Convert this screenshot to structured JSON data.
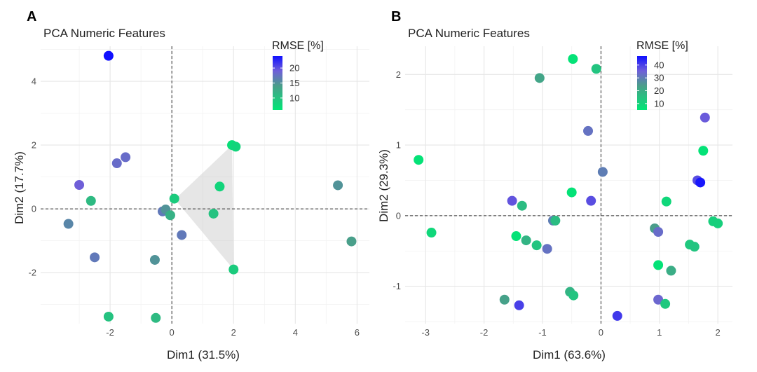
{
  "chart_data": [
    {
      "type": "scatter",
      "panel": "A",
      "title": "PCA Numeric Features",
      "xlabel": "Dim1 (31.5%)",
      "ylabel": "Dim2 (17.7%)",
      "xlim": [
        -4.25,
        6.4
      ],
      "ylim": [
        -3.6,
        5.1
      ],
      "xticks": [
        -2,
        0,
        2,
        4,
        6
      ],
      "yticks": [
        -2,
        0,
        2,
        4
      ],
      "xminor": [
        -3,
        -1,
        1,
        3,
        5
      ],
      "yminor": [
        -3,
        -1,
        1,
        3,
        5
      ],
      "grid": true,
      "legend": {
        "title": "RMSE [%]",
        "position": "top-right",
        "min": 6,
        "max": 24,
        "ticks": [
          10,
          15,
          20
        ]
      },
      "hull": [
        [
          0.1,
          0.3
        ],
        [
          1.95,
          2.0
        ],
        [
          2.0,
          -1.9
        ]
      ],
      "points": [
        {
          "x": -2.05,
          "y": 4.8,
          "rmse": 24
        },
        {
          "x": -1.5,
          "y": 1.62,
          "rmse": 18
        },
        {
          "x": -1.78,
          "y": 1.43,
          "rmse": 18
        },
        {
          "x": -3.0,
          "y": 0.75,
          "rmse": 19
        },
        {
          "x": -2.62,
          "y": 0.25,
          "rmse": 11
        },
        {
          "x": -3.35,
          "y": -0.47,
          "rmse": 16
        },
        {
          "x": -2.5,
          "y": -1.52,
          "rmse": 17
        },
        {
          "x": -0.3,
          "y": -0.08,
          "rmse": 17
        },
        {
          "x": -0.2,
          "y": -0.02,
          "rmse": 15
        },
        {
          "x": 0.08,
          "y": 0.32,
          "rmse": 9
        },
        {
          "x": -0.05,
          "y": -0.2,
          "rmse": 12
        },
        {
          "x": 0.32,
          "y": -0.82,
          "rmse": 17
        },
        {
          "x": -0.55,
          "y": -1.6,
          "rmse": 15
        },
        {
          "x": -2.05,
          "y": -3.38,
          "rmse": 10
        },
        {
          "x": -0.52,
          "y": -3.42,
          "rmse": 11
        },
        {
          "x": 1.95,
          "y": 2.0,
          "rmse": 7
        },
        {
          "x": 2.07,
          "y": 1.95,
          "rmse": 8
        },
        {
          "x": 1.55,
          "y": 0.7,
          "rmse": 8
        },
        {
          "x": 1.35,
          "y": -0.15,
          "rmse": 10
        },
        {
          "x": 2.0,
          "y": -1.9,
          "rmse": 9
        },
        {
          "x": 5.38,
          "y": 0.74,
          "rmse": 15
        },
        {
          "x": 5.82,
          "y": -1.02,
          "rmse": 14
        }
      ]
    },
    {
      "type": "scatter",
      "panel": "B",
      "title": "PCA Numeric Features",
      "xlabel": "Dim1 (63.6%)",
      "ylabel": "Dim2 (29.3%)",
      "xlim": [
        -3.35,
        2.25
      ],
      "ylim": [
        -1.53,
        2.4
      ],
      "xticks": [
        -3,
        -2,
        -1,
        0,
        1,
        2
      ],
      "yticks": [
        -1,
        0,
        1,
        2
      ],
      "xminor": [
        -2.5,
        -1.5,
        -0.5,
        0.5,
        1.5
      ],
      "yminor": [
        -1.5,
        -0.5,
        0.5,
        1.5
      ],
      "grid": true,
      "legend": {
        "title": "RMSE [%]",
        "position": "top-right",
        "min": 5,
        "max": 47,
        "ticks": [
          10,
          20,
          30,
          40
        ]
      },
      "points": [
        {
          "x": -0.48,
          "y": 2.22,
          "rmse": 6
        },
        {
          "x": -0.08,
          "y": 2.08,
          "rmse": 14
        },
        {
          "x": -1.05,
          "y": 1.95,
          "rmse": 22
        },
        {
          "x": -0.22,
          "y": 1.2,
          "rmse": 32
        },
        {
          "x": 1.78,
          "y": 1.39,
          "rmse": 36
        },
        {
          "x": 1.75,
          "y": 0.92,
          "rmse": 6
        },
        {
          "x": -3.12,
          "y": 0.79,
          "rmse": 6
        },
        {
          "x": 0.03,
          "y": 0.62,
          "rmse": 30
        },
        {
          "x": 1.65,
          "y": 0.5,
          "rmse": 38
        },
        {
          "x": 1.7,
          "y": 0.47,
          "rmse": 46
        },
        {
          "x": -0.5,
          "y": 0.33,
          "rmse": 6
        },
        {
          "x": -1.52,
          "y": 0.21,
          "rmse": 37
        },
        {
          "x": -0.17,
          "y": 0.21,
          "rmse": 38
        },
        {
          "x": 1.12,
          "y": 0.2,
          "rmse": 9
        },
        {
          "x": -1.35,
          "y": 0.14,
          "rmse": 16
        },
        {
          "x": -0.82,
          "y": -0.07,
          "rmse": 30
        },
        {
          "x": -0.78,
          "y": -0.07,
          "rmse": 16
        },
        {
          "x": 1.92,
          "y": -0.08,
          "rmse": 11
        },
        {
          "x": 2.0,
          "y": -0.11,
          "rmse": 11
        },
        {
          "x": 0.92,
          "y": -0.18,
          "rmse": 24
        },
        {
          "x": 0.98,
          "y": -0.23,
          "rmse": 33
        },
        {
          "x": -2.9,
          "y": -0.24,
          "rmse": 9
        },
        {
          "x": -1.45,
          "y": -0.29,
          "rmse": 6
        },
        {
          "x": -1.28,
          "y": -0.35,
          "rmse": 18
        },
        {
          "x": -1.1,
          "y": -0.42,
          "rmse": 14
        },
        {
          "x": -0.92,
          "y": -0.47,
          "rmse": 32
        },
        {
          "x": 1.52,
          "y": -0.41,
          "rmse": 13
        },
        {
          "x": 1.6,
          "y": -0.44,
          "rmse": 14
        },
        {
          "x": 0.98,
          "y": -0.7,
          "rmse": 6
        },
        {
          "x": 1.2,
          "y": -0.78,
          "rmse": 20
        },
        {
          "x": -0.53,
          "y": -1.08,
          "rmse": 18
        },
        {
          "x": -0.47,
          "y": -1.13,
          "rmse": 14
        },
        {
          "x": -1.65,
          "y": -1.19,
          "rmse": 23
        },
        {
          "x": -1.4,
          "y": -1.27,
          "rmse": 40
        },
        {
          "x": 0.98,
          "y": -1.19,
          "rmse": 34
        },
        {
          "x": 1.1,
          "y": -1.25,
          "rmse": 13
        },
        {
          "x": 0.28,
          "y": -1.42,
          "rmse": 41
        }
      ]
    }
  ]
}
